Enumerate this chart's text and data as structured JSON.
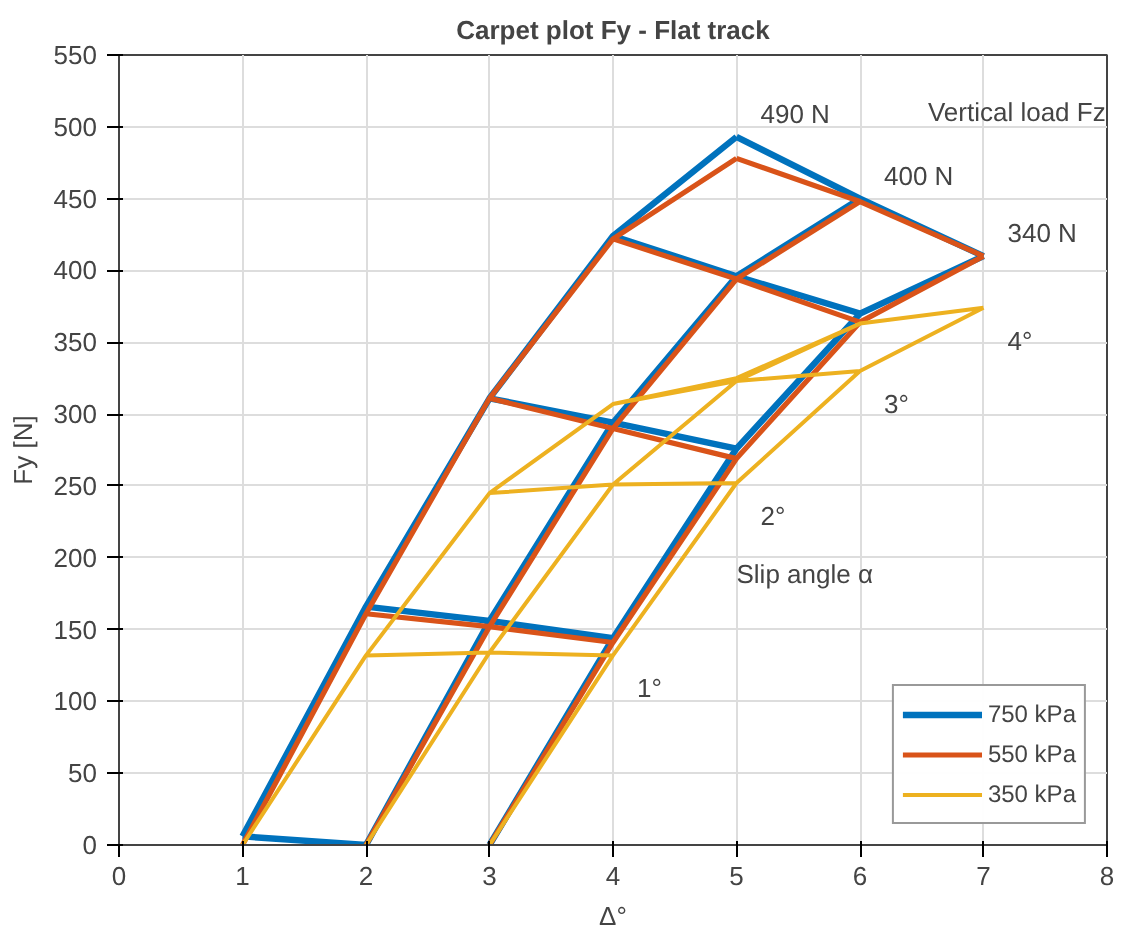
{
  "chart_data": {
    "type": "line",
    "title": "Carpet plot Fy - Flat track",
    "xlabel": "Δ°",
    "ylabel": "Fy [N]",
    "xlim": [
      0,
      8
    ],
    "xticks": [
      0,
      1,
      2,
      3,
      4,
      5,
      6,
      7,
      8
    ],
    "ylim": [
      0,
      550
    ],
    "yticks": [
      0,
      50,
      100,
      150,
      200,
      250,
      300,
      350,
      400,
      450,
      500,
      550
    ],
    "grid": true,
    "legend": "bottom right",
    "marker": "none",
    "line_style": "solid",
    "series": [
      {
        "name": "750 kPa",
        "color": "#0072bd",
        "x": [
          1,
          2,
          3,
          4,
          5,
          null,
          2,
          3,
          4,
          5,
          6,
          null,
          3,
          4,
          5,
          6,
          7,
          null,
          1,
          2,
          null,
          2,
          3,
          4,
          null,
          3,
          4,
          5,
          null,
          4,
          5,
          6,
          null,
          5,
          6,
          7
        ],
        "values": [
          6,
          166,
          311,
          424,
          493,
          null,
          0,
          156,
          294,
          396,
          450,
          null,
          0,
          144,
          276,
          370,
          410,
          null,
          6,
          0,
          null,
          166,
          156,
          144,
          null,
          311,
          294,
          276,
          null,
          424,
          396,
          370,
          null,
          493,
          450,
          410
        ]
      },
      {
        "name": "550 kPa",
        "color": "#d95319",
        "x": [
          1,
          2,
          3,
          4,
          5,
          null,
          2,
          3,
          4,
          5,
          6,
          null,
          3,
          4,
          5,
          6,
          7,
          null,
          2,
          3,
          4,
          null,
          3,
          4,
          5,
          null,
          4,
          5,
          6,
          null,
          5,
          6,
          7
        ],
        "values": [
          0,
          161,
          311,
          422,
          478,
          null,
          0,
          152,
          290,
          394,
          448,
          null,
          0,
          141,
          269,
          364,
          410,
          null,
          161,
          152,
          141,
          null,
          311,
          290,
          269,
          null,
          422,
          394,
          364,
          null,
          478,
          448,
          410
        ]
      },
      {
        "name": "350 kPa",
        "color": "#edb120",
        "x": [
          1,
          2,
          3,
          4,
          5,
          null,
          2,
          3,
          4,
          5,
          6,
          null,
          3,
          4,
          5,
          6,
          7,
          null,
          2,
          3,
          4,
          null,
          3,
          4,
          5,
          null,
          4,
          5,
          6,
          null,
          5,
          6,
          7
        ],
        "values": [
          0,
          132,
          245,
          307,
          325,
          null,
          0,
          134,
          251,
          323,
          363,
          null,
          0,
          132,
          252,
          330,
          374,
          null,
          132,
          134,
          132,
          null,
          245,
          251,
          252,
          null,
          307,
          323,
          330,
          null,
          325,
          363,
          374
        ]
      }
    ],
    "annotations": [
      {
        "text": "490 N",
        "x": 5,
        "y": 493
      },
      {
        "text": "400 N",
        "x": 6,
        "y": 450
      },
      {
        "text": "340 N",
        "x": 7,
        "y": 410
      },
      {
        "text": "4°",
        "x": 7,
        "y": 374
      },
      {
        "text": "3°",
        "x": 6,
        "y": 330
      },
      {
        "text": "2°",
        "x": 5,
        "y": 252
      },
      {
        "text": "1°",
        "x": 4,
        "y": 132
      },
      "Vertical load Fz",
      "Slip angle α"
    ]
  }
}
